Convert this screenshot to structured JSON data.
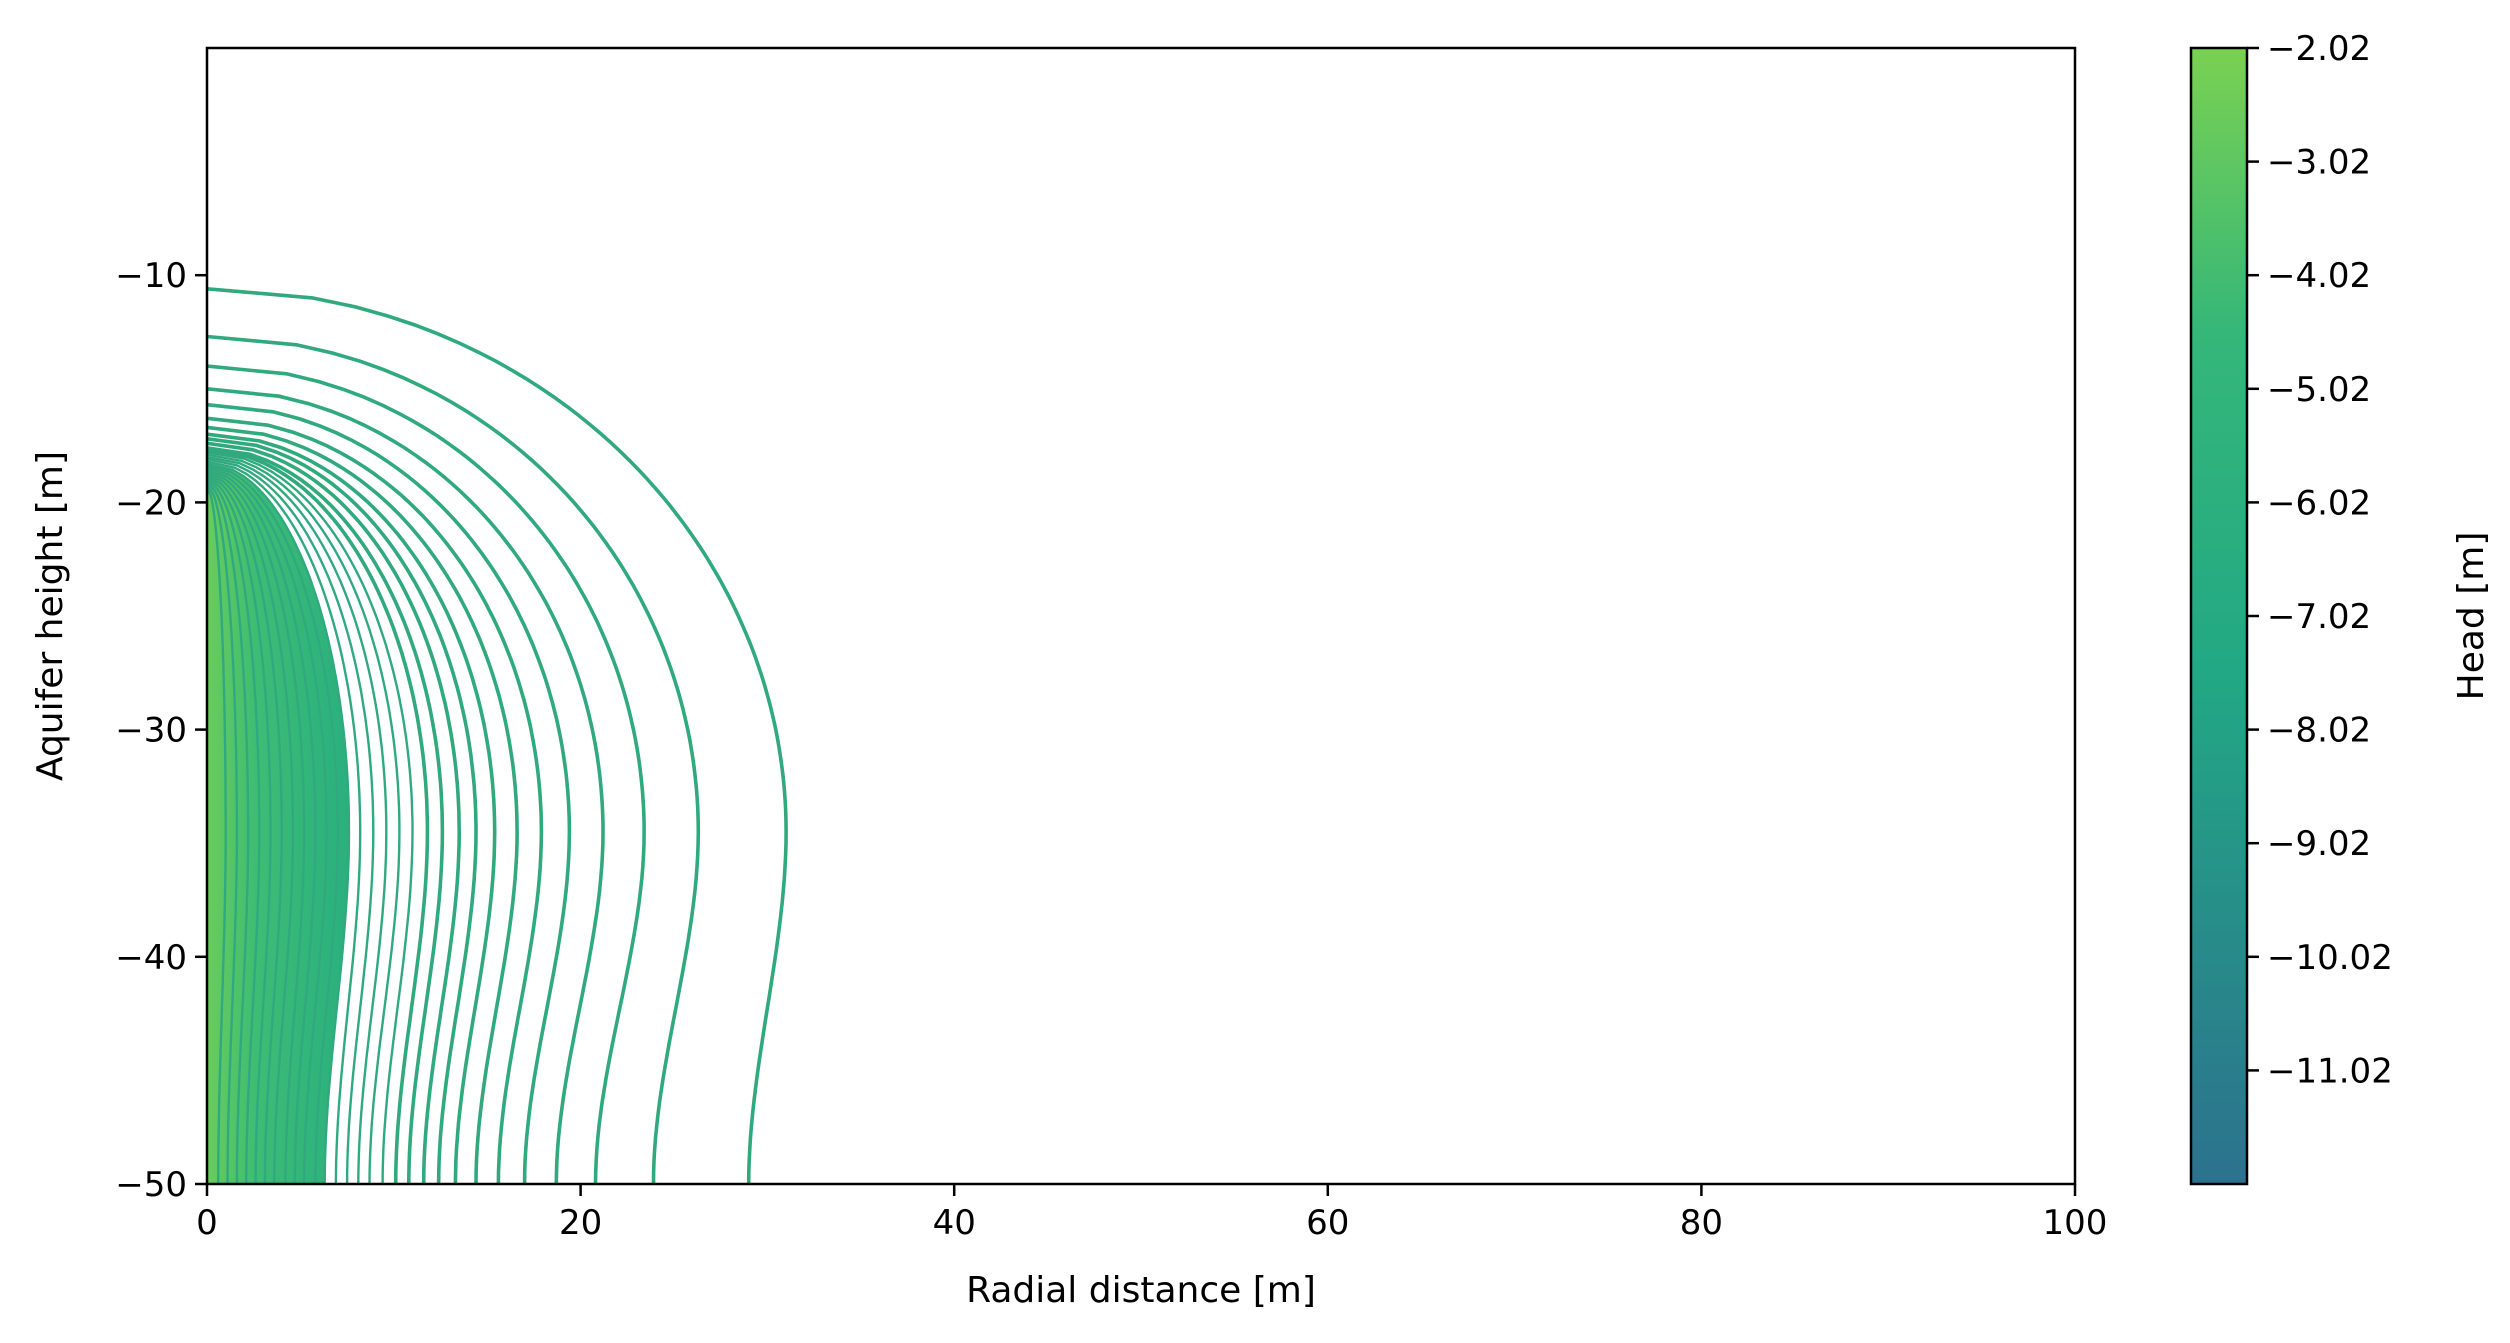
{
  "chart_data": {
    "type": "contour",
    "title": "",
    "xlabel": "Radial distance [m]",
    "ylabel": "Aquifer height [m]",
    "xlim": [
      0,
      100
    ],
    "ylim": [
      -50,
      0
    ],
    "x_ticks": [
      0,
      20,
      40,
      60,
      80,
      100
    ],
    "x_tick_labels": [
      "0",
      "20",
      "40",
      "60",
      "80",
      "100"
    ],
    "y_ticks": [
      -10,
      -20,
      -30,
      -40,
      -50
    ],
    "y_tick_labels": [
      "−10",
      "−20",
      "−30",
      "−40",
      "−50"
    ],
    "grid": false,
    "colorbar": {
      "label": "Head [m]",
      "range": [
        -12.02,
        -2.02
      ],
      "ticks": [
        -2.02,
        -3.02,
        -4.02,
        -5.02,
        -6.02,
        -7.02,
        -8.02,
        -9.02,
        -10.02,
        -11.02
      ],
      "tick_labels": [
        "−2.02",
        "−3.02",
        "−4.02",
        "−5.02",
        "−6.02",
        "−7.02",
        "−8.02",
        "−9.02",
        "−10.02",
        "−11.02"
      ],
      "colors": [
        "#2c728e",
        "#28ae80",
        "#3dbc74",
        "#7ad151"
      ]
    },
    "line_color": "#31a97f",
    "contours": [
      {
        "top_y": -10.6,
        "max_r": 31.0,
        "bottom_r": 29.0
      },
      {
        "top_y": -12.7,
        "max_r": 26.3,
        "bottom_r": 23.9
      },
      {
        "top_y": -14.0,
        "max_r": 23.4,
        "bottom_r": 20.8
      },
      {
        "top_y": -15.0,
        "max_r": 21.2,
        "bottom_r": 18.7
      },
      {
        "top_y": -15.7,
        "max_r": 19.4,
        "bottom_r": 17.0
      },
      {
        "top_y": -16.3,
        "max_r": 17.9,
        "bottom_r": 15.6
      },
      {
        "top_y": -16.7,
        "max_r": 16.6,
        "bottom_r": 14.4
      },
      {
        "top_y": -17.0,
        "max_r": 15.4,
        "bottom_r": 13.3
      },
      {
        "top_y": -17.2,
        "max_r": 14.4,
        "bottom_r": 12.4
      },
      {
        "top_y": -17.4,
        "max_r": 13.5,
        "bottom_r": 11.6
      },
      {
        "top_y": -17.6,
        "max_r": 12.6,
        "bottom_r": 10.8
      },
      {
        "top_y": -17.7,
        "max_r": 11.8,
        "bottom_r": 10.1
      },
      {
        "top_y": -17.8,
        "max_r": 11.0,
        "bottom_r": 9.4
      },
      {
        "top_y": -17.9,
        "max_r": 10.3,
        "bottom_r": 8.7
      },
      {
        "top_y": -18.0,
        "max_r": 9.6,
        "bottom_r": 8.1
      },
      {
        "top_y": -18.1,
        "max_r": 8.9,
        "bottom_r": 7.5
      },
      {
        "top_y": -18.2,
        "max_r": 8.2,
        "bottom_r": 6.9
      },
      {
        "top_y": -18.3,
        "max_r": 7.6,
        "bottom_r": 6.3
      },
      {
        "top_y": -18.4,
        "max_r": 7.0,
        "bottom_r": 5.8
      },
      {
        "top_y": -18.5,
        "max_r": 6.4,
        "bottom_r": 5.2
      },
      {
        "top_y": -18.6,
        "max_r": 5.8,
        "bottom_r": 4.7
      },
      {
        "top_y": -18.7,
        "max_r": 5.2,
        "bottom_r": 4.2
      },
      {
        "top_y": -18.8,
        "max_r": 4.6,
        "bottom_r": 3.6
      },
      {
        "top_y": -18.9,
        "max_r": 4.0,
        "bottom_r": 3.1
      },
      {
        "top_y": -19.0,
        "max_r": 3.4,
        "bottom_r": 2.6
      },
      {
        "top_y": -19.1,
        "max_r": 2.8,
        "bottom_r": 2.1
      },
      {
        "top_y": -19.2,
        "max_r": 2.2,
        "bottom_r": 1.6
      },
      {
        "top_y": -19.3,
        "max_r": 1.6,
        "bottom_r": 1.1
      },
      {
        "top_y": -19.4,
        "max_r": 1.0,
        "bottom_r": 0.6
      }
    ]
  }
}
